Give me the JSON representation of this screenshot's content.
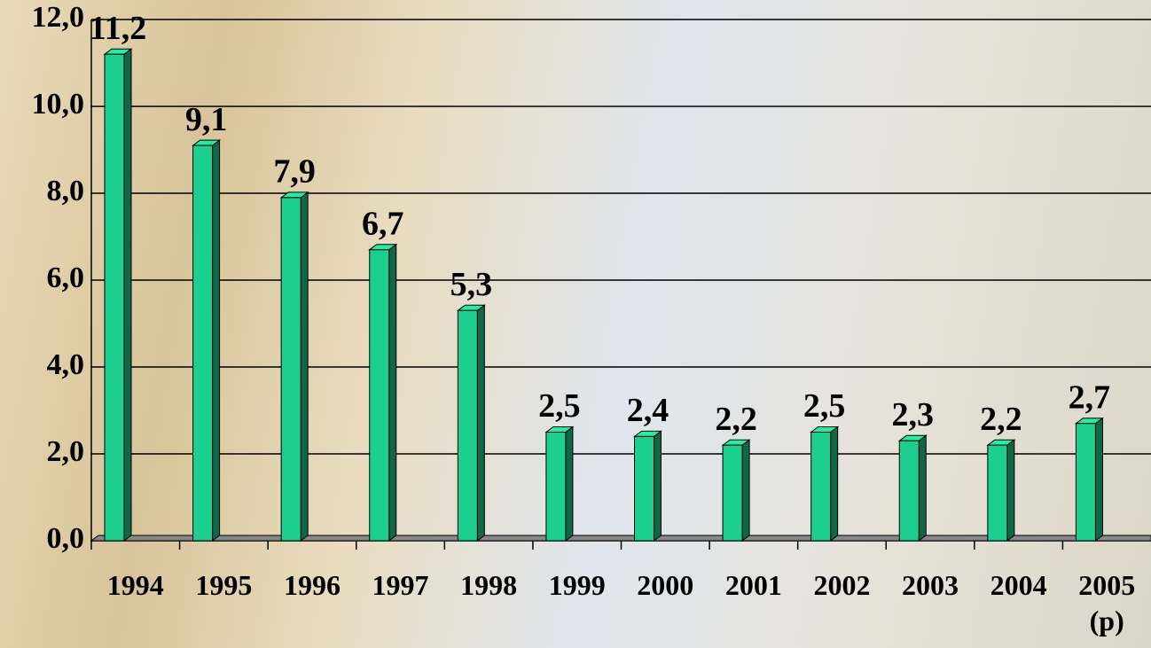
{
  "chart_data": {
    "type": "bar",
    "categories": [
      "1994",
      "1995",
      "1996",
      "1997",
      "1998",
      "1999",
      "2000",
      "2001",
      "2002",
      "2003",
      "2004",
      "2005 (p)"
    ],
    "values": [
      11.2,
      9.1,
      7.9,
      6.7,
      5.3,
      2.5,
      2.4,
      2.2,
      2.5,
      2.3,
      2.2,
      2.7
    ],
    "value_labels": [
      "11,2",
      "9,1",
      "7,9",
      "6,7",
      "5,3",
      "2,5",
      "2,4",
      "2,2",
      "2,5",
      "2,3",
      "2,2",
      "2,7"
    ],
    "color": "#1ccf8e",
    "ylim": [
      0,
      12
    ],
    "yticks": [
      {
        "value": 0,
        "label": "0,0"
      },
      {
        "value": 2,
        "label": "2,0"
      },
      {
        "value": 4,
        "label": "4,0"
      },
      {
        "value": 6,
        "label": "6,0"
      },
      {
        "value": 8,
        "label": "8,0"
      },
      {
        "value": 10,
        "label": "10,0"
      },
      {
        "value": 12,
        "label": "12,0"
      }
    ],
    "grid": true
  }
}
